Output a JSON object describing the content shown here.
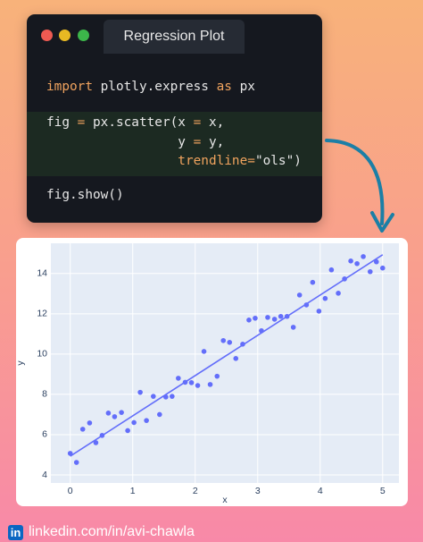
{
  "window": {
    "tab": "Regression Plot",
    "code": [
      [
        {
          "text": "import",
          "color": "#f0a35e"
        },
        {
          "text": " plotly.express ",
          "color": "#e6e6e6"
        },
        {
          "text": "as",
          "color": "#f0a35e"
        },
        {
          "text": " px",
          "color": "#e6e6e6"
        }
      ],
      [
        {
          "text": "fig ",
          "color": "#e6e6e6"
        },
        {
          "text": "=",
          "color": "#f0a35e"
        },
        {
          "text": " px.scatter(x ",
          "color": "#e6e6e6"
        },
        {
          "text": "=",
          "color": "#f0a35e"
        },
        {
          "text": " x,",
          "color": "#e6e6e6"
        }
      ],
      [
        {
          "text": "                 y ",
          "color": "#e6e6e6"
        },
        {
          "text": "=",
          "color": "#f0a35e"
        },
        {
          "text": " y,",
          "color": "#e6e6e6"
        }
      ],
      [
        {
          "text": "                 trendline",
          "color": "#f0a35e"
        },
        {
          "text": "=",
          "color": "#f0a35e"
        },
        {
          "text": "\"ols\")",
          "color": "#e6e6e6"
        }
      ],
      [
        {
          "text": "fig.show()",
          "color": "#e6e6e6"
        }
      ]
    ]
  },
  "chart_data": {
    "type": "scatter",
    "x_label": "x",
    "y_label": "y",
    "x": [
      0,
      0.1,
      0.2,
      0.31,
      0.41,
      0.51,
      0.61,
      0.71,
      0.82,
      0.92,
      1.02,
      1.12,
      1.22,
      1.33,
      1.43,
      1.53,
      1.63,
      1.73,
      1.84,
      1.94,
      2.04,
      2.14,
      2.24,
      2.35,
      2.45,
      2.55,
      2.65,
      2.76,
      2.86,
      2.96,
      3.06,
      3.16,
      3.27,
      3.37,
      3.47,
      3.57,
      3.67,
      3.78,
      3.88,
      3.98,
      4.08,
      4.18,
      4.29,
      4.39,
      4.49,
      4.59,
      4.69,
      4.8,
      4.9,
      5.0
    ],
    "series": [
      {
        "color": "#636efa",
        "values": [
          5.07,
          4.62,
          6.27,
          6.58,
          5.6,
          5.96,
          7.07,
          6.89,
          7.1,
          6.2,
          6.6,
          8.1,
          6.7,
          7.9,
          7.0,
          7.87,
          7.9,
          8.8,
          8.6,
          8.58,
          8.44,
          10.13,
          8.49,
          8.9,
          10.67,
          10.58,
          9.78,
          10.49,
          11.69,
          11.78,
          11.16,
          11.82,
          11.73,
          11.87,
          11.87,
          11.33,
          12.93,
          12.44,
          13.56,
          12.13,
          12.76,
          14.18,
          13.02,
          13.73,
          14.62,
          14.49,
          14.84,
          14.09,
          14.58,
          14.27
        ]
      }
    ],
    "trendline": {
      "color": "#636efa",
      "x": [
        0,
        5
      ],
      "values": [
        4.93,
        14.93
      ]
    },
    "xlim": [
      -0.31,
      5.26
    ],
    "ylim": [
      3.6,
      15.5
    ],
    "xticks": [
      0,
      1,
      2,
      3,
      4,
      5
    ],
    "yticks": [
      4,
      6,
      8,
      10,
      12,
      14
    ],
    "grid": true
  },
  "footer": {
    "icon": "in",
    "text": "linkedin.com/in/avi-chawla"
  }
}
